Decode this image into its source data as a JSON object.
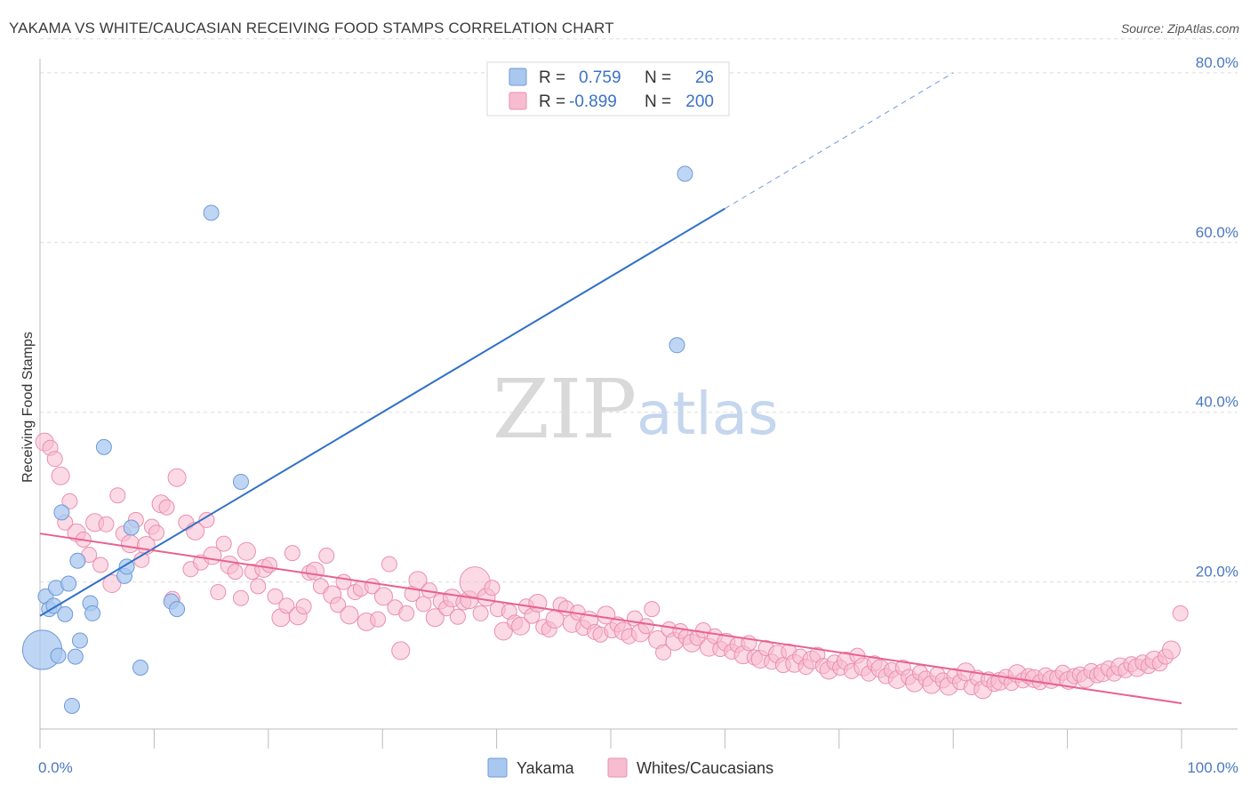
{
  "header": {
    "title": "YAKAMA VS WHITE/CAUCASIAN RECEIVING FOOD STAMPS CORRELATION CHART",
    "source": "Source: ZipAtlas.com"
  },
  "watermark": {
    "zip": "ZIP",
    "atlas": "atlas"
  },
  "legend_top": {
    "rows": [
      {
        "r_label": "R =",
        "r_value": "0.759",
        "n_label": "N =",
        "n_value": "26",
        "color": "#a8c8f0"
      },
      {
        "r_label": "R =",
        "r_value": "-0.899",
        "n_label": "N =",
        "n_value": "200",
        "color": "#f5b8cb"
      }
    ]
  },
  "legend_bottom": {
    "items": [
      "Yakama",
      "Whites/Caucasians"
    ]
  },
  "colors": {
    "blue_fill": "#a8c8f0",
    "blue_stroke": "#6f9ad6",
    "blue_line": "#3070c8",
    "pink_fill": "#f7bcd0",
    "pink_stroke": "#ea8fae",
    "pink_line": "#e8628f",
    "grid": "#dcdcdc",
    "tick_label": "#4a78c2"
  },
  "chart_data": {
    "type": "scatter",
    "title": "YAKAMA VS WHITE/CAUCASIAN RECEIVING FOOD STAMPS CORRELATION CHART",
    "ylabel": "Receiving Food Stamps",
    "xlabel": "",
    "xlim": [
      0,
      100
    ],
    "ylim": [
      0,
      84
    ],
    "x_tick_labels": [
      "0.0%",
      "100.0%"
    ],
    "y_ticks": [
      20,
      40,
      60,
      80
    ],
    "y_tick_labels": [
      "20.0%",
      "40.0%",
      "60.0%",
      "80.0%"
    ],
    "grid": true,
    "legend_placement": "top-center",
    "series": [
      {
        "name": "Yakama",
        "R": 0.759,
        "N": 26,
        "points": [
          [
            0.2,
            12.0,
            2.6
          ],
          [
            0.5,
            18.3,
            1
          ],
          [
            0.8,
            16.8,
            1
          ],
          [
            1.2,
            17.2,
            1
          ],
          [
            1.4,
            19.3,
            1
          ],
          [
            1.6,
            11.3,
            1
          ],
          [
            1.9,
            28.2,
            1
          ],
          [
            2.2,
            16.2,
            1
          ],
          [
            2.5,
            19.8,
            1
          ],
          [
            2.8,
            5.4,
            1
          ],
          [
            3.1,
            11.2,
            1
          ],
          [
            3.3,
            22.5,
            1
          ],
          [
            3.5,
            13.1,
            1
          ],
          [
            4.4,
            17.5,
            1
          ],
          [
            4.6,
            16.3,
            1
          ],
          [
            5.6,
            35.9,
            1
          ],
          [
            7.4,
            20.7,
            1
          ],
          [
            7.6,
            21.8,
            1
          ],
          [
            8.0,
            26.4,
            1
          ],
          [
            8.8,
            9.9,
            1
          ],
          [
            11.5,
            17.7,
            1
          ],
          [
            12.0,
            16.8,
            1
          ],
          [
            15.0,
            63.5,
            1
          ],
          [
            17.6,
            31.8,
            1
          ],
          [
            55.8,
            47.9,
            1
          ],
          [
            56.5,
            68.1,
            1
          ]
        ],
        "trend": {
          "x0": 0,
          "y0": 16.0,
          "x1": 60,
          "y1": 64.0,
          "dash_to_x": 80,
          "dash_to_y": 80.0
        }
      },
      {
        "name": "Whites/Caucasians",
        "R": -0.899,
        "N": 200,
        "points": [
          [
            0.4,
            36.5,
            1
          ],
          [
            0.9,
            35.8,
            1
          ],
          [
            1.3,
            34.5,
            1
          ],
          [
            1.8,
            32.5,
            1
          ],
          [
            2.2,
            27.0,
            1
          ],
          [
            2.6,
            29.5,
            1
          ],
          [
            3.2,
            25.8,
            1
          ],
          [
            3.8,
            25.0,
            1
          ],
          [
            4.3,
            23.2,
            1
          ],
          [
            4.8,
            27.0,
            1
          ],
          [
            5.3,
            22.0,
            1
          ],
          [
            5.8,
            26.8,
            1
          ],
          [
            6.3,
            19.8,
            1
          ],
          [
            6.8,
            30.2,
            1
          ],
          [
            7.3,
            25.7,
            1
          ],
          [
            7.9,
            24.5,
            1
          ],
          [
            8.4,
            27.3,
            1
          ],
          [
            8.9,
            22.6,
            1
          ],
          [
            9.3,
            24.3,
            1
          ],
          [
            9.8,
            26.5,
            1
          ],
          [
            10.2,
            25.8,
            1
          ],
          [
            10.6,
            29.2,
            1
          ],
          [
            11.1,
            28.8,
            1
          ],
          [
            11.6,
            18.0,
            1
          ],
          [
            12.0,
            32.3,
            1
          ],
          [
            12.8,
            27.0,
            1
          ],
          [
            13.2,
            21.5,
            1
          ],
          [
            13.6,
            26.0,
            1
          ],
          [
            14.1,
            22.3,
            1
          ],
          [
            14.6,
            27.3,
            1
          ],
          [
            15.1,
            23.1,
            1
          ],
          [
            15.6,
            18.8,
            1
          ],
          [
            16.1,
            24.5,
            1
          ],
          [
            16.6,
            22.0,
            1
          ],
          [
            17.1,
            21.2,
            1
          ],
          [
            17.6,
            18.1,
            1
          ],
          [
            18.1,
            23.6,
            1
          ],
          [
            18.6,
            21.2,
            1
          ],
          [
            19.1,
            19.5,
            1
          ],
          [
            19.6,
            21.6,
            1
          ],
          [
            20.1,
            22.0,
            1
          ],
          [
            20.6,
            18.3,
            1
          ],
          [
            21.1,
            15.8,
            1
          ],
          [
            21.6,
            17.2,
            1
          ],
          [
            22.1,
            23.4,
            1
          ],
          [
            22.6,
            16.0,
            1
          ],
          [
            23.1,
            17.1,
            1
          ],
          [
            23.6,
            21.1,
            1
          ],
          [
            24.1,
            21.3,
            1
          ],
          [
            24.6,
            19.5,
            1
          ],
          [
            25.1,
            23.1,
            1
          ],
          [
            25.6,
            18.5,
            1
          ],
          [
            26.1,
            17.3,
            1
          ],
          [
            26.6,
            20.0,
            1
          ],
          [
            27.1,
            16.1,
            1
          ],
          [
            27.6,
            18.8,
            1
          ],
          [
            28.1,
            19.2,
            1
          ],
          [
            28.6,
            15.3,
            1
          ],
          [
            29.1,
            19.5,
            1
          ],
          [
            29.6,
            15.6,
            1
          ],
          [
            30.1,
            18.3,
            1
          ],
          [
            30.6,
            22.1,
            1
          ],
          [
            31.1,
            17.0,
            1
          ],
          [
            31.6,
            11.9,
            1
          ],
          [
            32.1,
            16.3,
            1
          ],
          [
            32.6,
            18.6,
            1
          ],
          [
            33.1,
            20.2,
            1
          ],
          [
            33.6,
            17.4,
            1
          ],
          [
            34.1,
            19.0,
            1
          ],
          [
            34.6,
            15.8,
            1
          ],
          [
            35.1,
            17.7,
            1
          ],
          [
            35.6,
            16.9,
            1
          ],
          [
            36.1,
            18.1,
            1
          ],
          [
            36.6,
            15.9,
            1
          ],
          [
            37.1,
            17.6,
            1
          ],
          [
            37.6,
            17.9,
            1
          ],
          [
            38.1,
            20.0,
            2.0
          ],
          [
            38.6,
            16.3,
            1
          ],
          [
            39.1,
            18.2,
            1
          ],
          [
            39.6,
            19.3,
            1
          ],
          [
            40.1,
            16.8,
            1
          ],
          [
            40.6,
            14.2,
            1
          ],
          [
            41.1,
            16.5,
            1
          ],
          [
            41.6,
            15.2,
            1
          ],
          [
            42.1,
            14.8,
            1
          ],
          [
            42.6,
            17.1,
            1
          ],
          [
            43.1,
            16.0,
            1
          ],
          [
            43.6,
            17.5,
            1
          ],
          [
            44.1,
            14.7,
            1
          ],
          [
            44.6,
            14.4,
            1
          ],
          [
            45.1,
            15.6,
            1
          ],
          [
            45.6,
            17.3,
            1
          ],
          [
            46.1,
            16.9,
            1
          ],
          [
            46.6,
            15.1,
            1
          ],
          [
            47.1,
            16.4,
            1
          ],
          [
            47.6,
            14.6,
            1
          ],
          [
            48.1,
            15.5,
            1
          ],
          [
            48.6,
            14.1,
            1
          ],
          [
            49.1,
            13.8,
            1
          ],
          [
            49.6,
            16.1,
            1
          ],
          [
            50.1,
            14.3,
            1
          ],
          [
            50.6,
            15.0,
            1
          ],
          [
            51.1,
            14.2,
            1
          ],
          [
            51.6,
            13.6,
            1
          ],
          [
            52.1,
            15.7,
            1
          ],
          [
            52.6,
            14.0,
            1
          ],
          [
            53.1,
            14.8,
            1
          ],
          [
            53.6,
            16.8,
            1
          ],
          [
            54.1,
            13.2,
            1
          ],
          [
            54.6,
            11.7,
            1
          ],
          [
            55.1,
            14.4,
            1
          ],
          [
            55.6,
            13.0,
            1
          ],
          [
            56.1,
            14.2,
            1
          ],
          [
            56.6,
            13.5,
            1
          ],
          [
            57.1,
            12.8,
            1
          ],
          [
            57.6,
            13.4,
            1
          ],
          [
            58.1,
            14.3,
            1
          ],
          [
            58.6,
            12.3,
            1
          ],
          [
            59.1,
            13.6,
            1
          ],
          [
            59.6,
            12.1,
            1
          ],
          [
            60.1,
            12.9,
            1
          ],
          [
            60.6,
            11.8,
            1
          ],
          [
            61.1,
            12.6,
            1
          ],
          [
            61.6,
            11.4,
            1
          ],
          [
            62.1,
            12.8,
            1
          ],
          [
            62.6,
            11.1,
            1
          ],
          [
            63.1,
            10.9,
            1
          ],
          [
            63.6,
            12.2,
            1
          ],
          [
            64.1,
            10.6,
            1
          ],
          [
            64.6,
            11.5,
            1
          ],
          [
            65.1,
            10.2,
            1
          ],
          [
            65.6,
            11.8,
            1
          ],
          [
            66.1,
            10.4,
            1
          ],
          [
            66.6,
            11.2,
            1
          ],
          [
            67.1,
            10.0,
            1
          ],
          [
            67.6,
            10.8,
            1
          ],
          [
            68.1,
            11.4,
            1
          ],
          [
            68.6,
            10.1,
            1
          ],
          [
            69.1,
            9.6,
            1
          ],
          [
            69.6,
            10.5,
            1
          ],
          [
            70.1,
            9.9,
            1
          ],
          [
            70.6,
            10.7,
            1
          ],
          [
            71.1,
            9.5,
            1
          ],
          [
            71.6,
            11.3,
            1
          ],
          [
            72.1,
            10.0,
            1
          ],
          [
            72.6,
            9.2,
            1
          ],
          [
            73.1,
            10.4,
            1
          ],
          [
            73.6,
            9.8,
            1
          ],
          [
            74.1,
            8.9,
            1
          ],
          [
            74.6,
            9.6,
            1
          ],
          [
            75.1,
            8.5,
            1
          ],
          [
            75.6,
            9.9,
            1
          ],
          [
            76.1,
            8.8,
            1
          ],
          [
            76.6,
            8.1,
            1
          ],
          [
            77.1,
            9.3,
            1
          ],
          [
            77.6,
            8.6,
            1
          ],
          [
            78.1,
            7.9,
            1
          ],
          [
            78.6,
            9.1,
            1
          ],
          [
            79.1,
            8.4,
            1
          ],
          [
            79.6,
            7.7,
            1
          ],
          [
            80.1,
            8.9,
            1
          ],
          [
            80.6,
            8.2,
            1
          ],
          [
            81.1,
            9.4,
            1
          ],
          [
            81.6,
            7.6,
            1
          ],
          [
            82.1,
            8.7,
            1
          ],
          [
            82.6,
            7.3,
            1
          ],
          [
            83.1,
            8.5,
            1
          ],
          [
            83.6,
            8.0,
            1
          ],
          [
            84.1,
            8.3,
            1
          ],
          [
            84.6,
            8.8,
            1
          ],
          [
            85.1,
            8.1,
            1
          ],
          [
            85.6,
            9.2,
            1
          ],
          [
            86.1,
            8.4,
            1
          ],
          [
            86.6,
            8.9,
            1
          ],
          [
            87.1,
            8.6,
            1
          ],
          [
            87.6,
            8.2,
            1
          ],
          [
            88.1,
            9.0,
            1
          ],
          [
            88.6,
            8.5,
            1
          ],
          [
            89.1,
            8.7,
            1
          ],
          [
            89.6,
            9.3,
            1
          ],
          [
            90.1,
            8.4,
            1
          ],
          [
            90.6,
            8.9,
            1
          ],
          [
            91.1,
            9.1,
            1
          ],
          [
            91.6,
            8.6,
            1
          ],
          [
            92.1,
            9.5,
            1
          ],
          [
            92.6,
            9.0,
            1
          ],
          [
            93.1,
            9.3,
            1
          ],
          [
            93.6,
            9.8,
            1
          ],
          [
            94.1,
            9.2,
            1
          ],
          [
            94.6,
            10.0,
            1
          ],
          [
            95.1,
            9.6,
            1
          ],
          [
            95.6,
            10.3,
            1
          ],
          [
            96.1,
            9.9,
            1
          ],
          [
            96.6,
            10.5,
            1
          ],
          [
            97.1,
            10.1,
            1
          ],
          [
            97.6,
            10.8,
            1
          ],
          [
            98.1,
            10.4,
            1
          ],
          [
            98.6,
            11.2,
            1
          ],
          [
            99.1,
            12.0,
            1
          ],
          [
            99.9,
            16.3,
            1
          ]
        ],
        "trend": {
          "x0": 0,
          "y0": 25.7,
          "x1": 100,
          "y1": 5.7
        }
      }
    ]
  }
}
